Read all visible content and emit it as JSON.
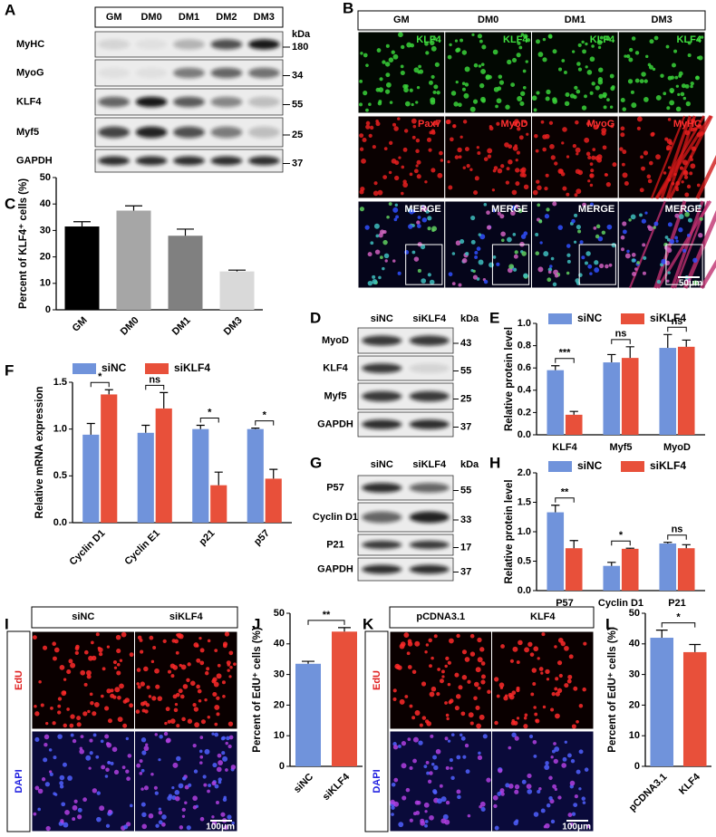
{
  "blots": [
    {
      "label": "A",
      "columns": [
        "GM",
        "DM0",
        "DM1",
        "DM2",
        "DM3"
      ],
      "unit": "kDa",
      "rows": [
        {
          "name": "MyHC",
          "size": 180
        },
        {
          "name": "MyoG",
          "size": 34
        },
        {
          "name": "KLF4",
          "size": 55
        },
        {
          "name": "Myf5",
          "size": 25
        },
        {
          "name": "GAPDH",
          "size": 37
        }
      ]
    },
    {
      "label": "D",
      "columns": [
        "siNC",
        "siKLF4"
      ],
      "unit": "kDa",
      "rows": [
        {
          "name": "MyoD",
          "size": 43
        },
        {
          "name": "KLF4",
          "size": 55
        },
        {
          "name": "Myf5",
          "size": 25
        },
        {
          "name": "GAPDH",
          "size": 37
        }
      ]
    },
    {
      "label": "G",
      "columns": [
        "siNC",
        "siKLF4"
      ],
      "unit": "kDa",
      "rows": [
        {
          "name": "P57",
          "size": 55
        },
        {
          "name": "Cyclin D1",
          "size": 33
        },
        {
          "name": "P21",
          "size": 17
        },
        {
          "name": "GAPDH",
          "size": 37
        }
      ]
    }
  ],
  "images": [
    {
      "label": "B",
      "columns": [
        "GM",
        "DM0",
        "DM1",
        "DM3"
      ],
      "rows": [
        [
          "KLF4",
          "KLF4",
          "KLF4",
          "KLF4"
        ],
        [
          "Pax7",
          "MyoD",
          "MyoG",
          "MyHC"
        ],
        [
          "MERGE",
          "MERGE",
          "MERGE",
          "MERGE"
        ]
      ],
      "scale_bar": "50μm"
    },
    {
      "label": "I",
      "columns": [
        "siNC",
        "siKLF4"
      ],
      "rows": [
        "EdU",
        "DAPI"
      ],
      "scale_bar": "100μm"
    },
    {
      "label": "K",
      "columns": [
        "pCDNA3.1",
        "KLF4"
      ],
      "rows": [
        "EdU",
        "DAPI"
      ],
      "scale_bar": "100μm"
    }
  ],
  "chart_data": [
    {
      "type": "bar",
      "panel": "C",
      "y_label": "Percent of KLF4⁺ cells (%)",
      "categories": [
        "GM",
        "DM0",
        "DM1",
        "DM3"
      ],
      "values": [
        31.5,
        37.5,
        28,
        14.5
      ],
      "errors": [
        1.8,
        1.8,
        2.5,
        0.5
      ],
      "colors": [
        "#000000",
        "#a6a6a6",
        "#808080",
        "#d9d9d9"
      ],
      "ylim": [
        0,
        50
      ],
      "yticks": [
        0,
        10,
        20,
        30,
        40,
        50
      ]
    },
    {
      "type": "bar",
      "panel": "E",
      "y_label": "Relative protein level",
      "categories": [
        "KLF4",
        "Myf5",
        "MyoD"
      ],
      "series": [
        {
          "name": "siNC",
          "color": "#7093db",
          "values": [
            0.58,
            0.65,
            0.78
          ],
          "errors": [
            0.04,
            0.07,
            0.12
          ]
        },
        {
          "name": "siKLF4",
          "color": "#e8503a",
          "values": [
            0.18,
            0.69,
            0.79
          ],
          "errors": [
            0.03,
            0.1,
            0.06
          ]
        }
      ],
      "annotations": [
        "***",
        "ns",
        "ns"
      ],
      "ylim": [
        0,
        1
      ],
      "yticks": [
        {
          "value": 0,
          "label": "0.0"
        },
        0.2,
        0.4,
        0.6,
        0.8,
        {
          "value": 1,
          "label": "1.0"
        }
      ]
    },
    {
      "type": "bar",
      "panel": "F",
      "y_label": "Relative mRNA expression",
      "categories": [
        "Cyclin D1",
        "Cyclin E1",
        "p21",
        "p57"
      ],
      "series": [
        {
          "name": "siNC",
          "color": "#7093db",
          "values": [
            0.94,
            0.96,
            1.0,
            1.0
          ],
          "errors": [
            0.12,
            0.08,
            0.04,
            0.01
          ]
        },
        {
          "name": "siKLF4",
          "color": "#e8503a",
          "values": [
            1.37,
            1.22,
            0.4,
            0.47
          ],
          "errors": [
            0.05,
            0.17,
            0.14,
            0.1
          ]
        }
      ],
      "annotations": [
        "*",
        "ns",
        "*",
        "*"
      ],
      "ylim": [
        0,
        1.5
      ],
      "yticks": [
        {
          "value": 0,
          "label": "0.0"
        },
        0.5,
        {
          "value": 1,
          "label": "1.0"
        },
        1.5
      ]
    },
    {
      "type": "bar",
      "panel": "H",
      "y_label": "Relative protein level",
      "categories": [
        "P57",
        "Cyclin D1",
        "P21"
      ],
      "series": [
        {
          "name": "siNC",
          "color": "#7093db",
          "values": [
            1.33,
            0.42,
            0.8
          ],
          "errors": [
            0.12,
            0.06,
            0.02
          ]
        },
        {
          "name": "siKLF4",
          "color": "#e8503a",
          "values": [
            0.72,
            0.71,
            0.72
          ],
          "errors": [
            0.13,
            0.01,
            0.06
          ]
        }
      ],
      "annotations": [
        "**",
        "*",
        "ns"
      ],
      "ylim": [
        0,
        2
      ],
      "yticks": [
        {
          "value": 0,
          "label": "0.0"
        },
        0.5,
        {
          "value": 1,
          "label": "1.0"
        },
        1.5,
        {
          "value": 2,
          "label": "2.0"
        }
      ]
    },
    {
      "type": "bar",
      "panel": "J",
      "y_label": "Percent of EdU⁺ cells (%)",
      "categories": [
        "siNC",
        "siKLF4"
      ],
      "values": [
        33.5,
        44
      ],
      "errors": [
        0.8,
        1.3
      ],
      "colors": [
        "#7093db",
        "#e8503a"
      ],
      "annotations": [
        "**"
      ],
      "ylim": [
        0,
        50
      ],
      "yticks": [
        0,
        10,
        20,
        30,
        40,
        50
      ]
    },
    {
      "type": "bar",
      "panel": "L",
      "y_label": "Percent of EdU⁺ cells (%)",
      "categories": [
        "pCDNA3.1",
        "KLF4"
      ],
      "values": [
        42,
        37.3
      ],
      "errors": [
        2.5,
        2.5
      ],
      "colors": [
        "#7093db",
        "#e8503a"
      ],
      "annotations": [
        "*"
      ],
      "ylim": [
        0,
        50
      ],
      "yticks": [
        0,
        10,
        20,
        30,
        40,
        50
      ]
    }
  ]
}
